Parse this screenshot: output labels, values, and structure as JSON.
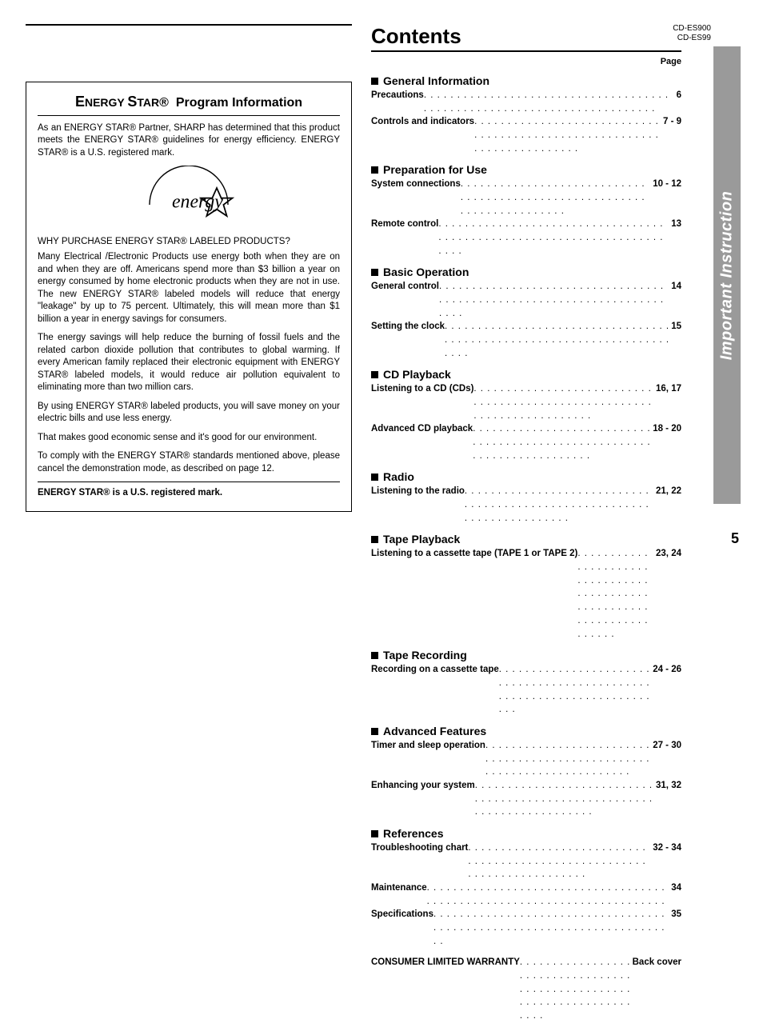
{
  "model_codes": [
    "CD-ES900",
    "CD-ES99"
  ],
  "contents_title": "Contents",
  "page_label": "Page",
  "page_number": "5",
  "sidebar_label": "Important Instruction",
  "sidebar_bg": "#9a9a9a",
  "energy_star_box": {
    "title_prefix": "E",
    "title_word1": "NERGY ",
    "title_prefix2": "S",
    "title_word2": "TAR®  Program Information",
    "p1": "As an ENERGY STAR® Partner, SHARP has determined that this product meets the ENERGY STAR® guidelines for energy efficiency. ENERGY STAR® is a U.S. registered mark.",
    "subhead": "WHY PURCHASE ENERGY STAR® LABELED PRODUCTS?",
    "p2": "Many Electrical /Electronic Products use energy both when they are on and when they are off. Americans spend more than $3 billion a year on energy consumed by home electronic products when they are not in use. The new ENERGY STAR® labeled models will reduce that energy \"leakage\" by up to 75 percent. Ultimately, this will mean more than $1 billion a year in energy savings for consumers.",
    "p3": "The energy savings will help reduce the burning of fossil fuels and the related carbon dioxide pollution that contributes to global warming. If every American family replaced their electronic equipment with ENERGY STAR® labeled models, it would reduce air pollution equivalent to eliminating more than two million cars.",
    "p4": "By using ENERGY STAR® labeled products, you will save money on your electric bills and use less energy.",
    "p5": "That makes good economic sense and it's good for our environment.",
    "p6": "To comply with the ENERGY STAR® standards mentioned above, please cancel the demonstration mode, as described on page 12.",
    "footer": "ENERGY STAR® is a U.S. registered mark."
  },
  "toc": [
    {
      "section": "General Information",
      "items": [
        {
          "label": "Precautions",
          "page": "6"
        },
        {
          "label": "Controls and indicators",
          "page": "7 - 9"
        }
      ]
    },
    {
      "section": "Preparation for Use",
      "items": [
        {
          "label": "System connections",
          "page": "10 - 12"
        },
        {
          "label": "Remote control",
          "page": "13"
        }
      ]
    },
    {
      "section": "Basic Operation",
      "items": [
        {
          "label": "General control",
          "page": "14"
        },
        {
          "label": "Setting the clock",
          "page": "15"
        }
      ]
    },
    {
      "section": "CD Playback",
      "items": [
        {
          "label": "Listening to a CD (CDs)",
          "page": "16, 17"
        },
        {
          "label": "Advanced CD playback",
          "page": "18 - 20"
        }
      ]
    },
    {
      "section": "Radio",
      "items": [
        {
          "label": "Listening to the radio",
          "page": "21, 22"
        }
      ]
    },
    {
      "section": "Tape Playback",
      "items": [
        {
          "label": "Listening to a cassette tape (TAPE 1 or TAPE 2)",
          "page": "23, 24"
        }
      ]
    },
    {
      "section": "Tape Recording",
      "items": [
        {
          "label": "Recording on a cassette tape",
          "page": "24 - 26"
        }
      ]
    },
    {
      "section": "Advanced Features",
      "items": [
        {
          "label": "Timer and sleep operation",
          "page": "27 - 30"
        },
        {
          "label": "Enhancing your system",
          "page": "31, 32"
        }
      ]
    },
    {
      "section": "References",
      "items": [
        {
          "label": "Troubleshooting chart",
          "page": "32 - 34"
        },
        {
          "label": "Maintenance",
          "page": "34"
        },
        {
          "label": "Specifications",
          "page": "35"
        }
      ]
    }
  ],
  "warranty": {
    "label": "CONSUMER LIMITED WARRANTY",
    "page": "Back cover"
  }
}
